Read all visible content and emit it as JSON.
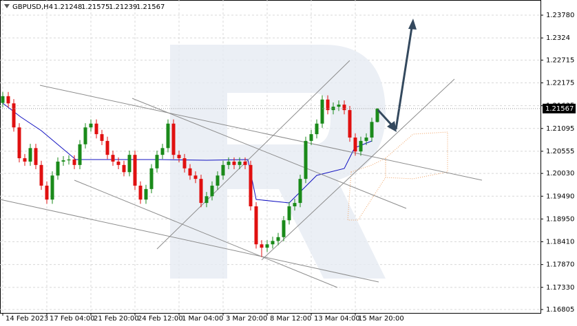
{
  "chart_data": {
    "type": "candlestick",
    "title": "GBPUSD,H4",
    "open": [
      1.217,
      1.2186,
      1.2169,
      1.2112,
      1.2039,
      1.2031,
      1.2063,
      1.2023,
      1.1974,
      1.1941,
      1.1998,
      1.2031,
      1.2034,
      1.2036,
      1.2023,
      1.2072,
      1.2112,
      1.2121,
      1.2096,
      1.208,
      1.2047,
      1.2031,
      1.2023,
      1.2006,
      1.2047,
      1.1974,
      1.1941,
      1.1966,
      1.2015,
      1.2047,
      1.2063,
      1.2121,
      1.2047,
      1.2039,
      1.2015,
      1.1998,
      1.199,
      1.1933,
      1.1949,
      1.1974,
      1.1998,
      1.2023,
      1.2031,
      1.2023,
      1.2031,
      1.2023,
      1.1925,
      1.1835,
      1.1827,
      1.1835,
      1.1843,
      1.1852,
      1.1892,
      1.1925,
      1.1933,
      1.199,
      1.208,
      1.2096,
      1.2121,
      1.2178,
      1.2153,
      1.2161,
      1.2166,
      1.2153,
      1.2088,
      1.2055,
      1.208,
      1.2088,
      1.21248
    ],
    "high": [
      1.2196,
      1.2196,
      1.2179,
      1.2122,
      1.2049,
      1.2073,
      1.2073,
      1.2033,
      1.1984,
      1.2008,
      1.2041,
      1.2044,
      1.2046,
      1.2046,
      1.2082,
      1.2122,
      1.2131,
      1.2131,
      1.2106,
      1.209,
      1.2057,
      1.2041,
      1.2033,
      1.2057,
      1.2057,
      1.1984,
      1.1976,
      1.2025,
      1.2057,
      1.2073,
      1.2131,
      1.2131,
      1.2057,
      1.2049,
      1.2025,
      1.2008,
      1.2,
      1.1959,
      1.1984,
      1.2008,
      1.2033,
      1.2041,
      1.2041,
      1.2041,
      1.2041,
      1.2033,
      1.1935,
      1.1845,
      1.1845,
      1.1853,
      1.1862,
      1.1902,
      1.1935,
      1.1943,
      1.2,
      1.209,
      1.2106,
      1.2131,
      1.2188,
      1.2188,
      1.2171,
      1.2176,
      1.2176,
      1.2163,
      1.2098,
      1.209,
      1.2098,
      1.2135,
      1.21575
    ],
    "low": [
      1.216,
      1.2159,
      1.2102,
      1.2029,
      1.2021,
      1.2021,
      1.2013,
      1.1964,
      1.1931,
      1.1931,
      1.1988,
      1.2021,
      1.2024,
      1.2013,
      1.2013,
      1.2062,
      1.2102,
      1.2086,
      1.207,
      1.2037,
      1.2021,
      1.2013,
      1.1996,
      1.1996,
      1.1964,
      1.1931,
      1.1931,
      1.1956,
      1.2005,
      1.2037,
      1.2053,
      1.2037,
      1.2029,
      1.2005,
      1.1988,
      1.198,
      1.1923,
      1.1923,
      1.1939,
      1.1964,
      1.1988,
      1.2013,
      1.2013,
      1.2013,
      1.2013,
      1.1915,
      1.1825,
      1.1805,
      1.1817,
      1.1825,
      1.1833,
      1.1842,
      1.1882,
      1.1915,
      1.1923,
      1.198,
      1.207,
      1.2086,
      1.2111,
      1.2143,
      1.2143,
      1.2151,
      1.2143,
      1.2078,
      1.2045,
      1.2045,
      1.207,
      1.2078,
      1.21239
    ],
    "close": [
      1.2186,
      1.2169,
      1.2112,
      1.2039,
      1.2031,
      1.2063,
      1.2023,
      1.1974,
      1.1941,
      1.1998,
      1.2031,
      1.2034,
      1.2036,
      1.2023,
      1.2072,
      1.2112,
      1.2121,
      1.2096,
      1.208,
      1.2047,
      1.2031,
      1.2023,
      1.2006,
      1.2047,
      1.1974,
      1.1941,
      1.1966,
      1.2015,
      1.2047,
      1.2063,
      1.2121,
      1.2047,
      1.2039,
      1.2015,
      1.1998,
      1.199,
      1.1933,
      1.1949,
      1.1974,
      1.1998,
      1.2023,
      1.2031,
      1.2023,
      1.2031,
      1.2023,
      1.1925,
      1.1835,
      1.1827,
      1.1835,
      1.1843,
      1.1852,
      1.1892,
      1.1925,
      1.1933,
      1.199,
      1.208,
      1.2096,
      1.2121,
      1.2178,
      1.2153,
      1.2161,
      1.2166,
      1.2153,
      1.2088,
      1.2055,
      1.208,
      1.2088,
      1.2125,
      1.21567
    ],
    "up_color": "#1a8a1a",
    "down_color": "#e01010",
    "xlim": [
      -0.5,
      97.625
    ],
    "xticks": [
      {
        "value": 0,
        "label": "14 Feb 2023"
      },
      {
        "value": 8,
        "label": "17 Feb 04:00"
      },
      {
        "value": 16,
        "label": "21 Feb 20:00"
      },
      {
        "value": 24,
        "label": "24 Feb 12:00"
      },
      {
        "value": 32,
        "label": "1 Mar 04:00"
      },
      {
        "value": 40,
        "label": "3 Mar 20:00"
      },
      {
        "value": 48,
        "label": "8 Mar 12:00"
      },
      {
        "value": 56,
        "label": "13 Mar 04:00"
      },
      {
        "value": 64,
        "label": "15 Mar 20:00"
      }
    ],
    "ylim": [
      1.16724,
      1.24139
    ],
    "yticks": [
      {
        "value": 1.2378,
        "label": "1.23780"
      },
      1.2324,
      1.22715,
      1.22175,
      1.21635,
      1.21095,
      1.20555,
      {
        "value": 1.2003,
        "label": "1.20030"
      },
      {
        "value": 1.1949,
        "label": "1.19490"
      },
      {
        "value": 1.1895,
        "label": "1.18950"
      },
      {
        "value": 1.1841,
        "label": "1.18410"
      },
      {
        "value": 1.1787,
        "label": "1.17870"
      },
      {
        "value": 1.1733,
        "label": "1.17330"
      },
      1.16805
    ],
    "grid": true
  }
}
